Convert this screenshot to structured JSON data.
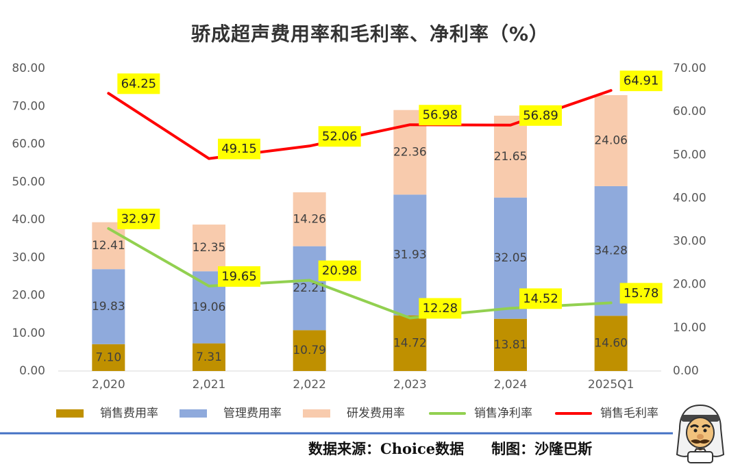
{
  "chart_data": {
    "type": "bar",
    "title": "骄成超声费用率和毛利率、净利率（%）",
    "categories": [
      "2,020",
      "2,021",
      "2,022",
      "2,023",
      "2,024",
      "2025Q1"
    ],
    "left_axis": {
      "ylim": [
        0,
        80
      ],
      "ticks": [
        "0.00",
        "10.00",
        "20.00",
        "30.00",
        "40.00",
        "50.00",
        "60.00",
        "70.00",
        "80.00"
      ]
    },
    "right_axis": {
      "ylim": [
        0,
        70
      ],
      "ticks": [
        "0.00",
        "10.00",
        "20.00",
        "30.00",
        "40.00",
        "50.00",
        "60.00",
        "70.00"
      ]
    },
    "stacked_bars": [
      {
        "name": "销售费用率",
        "color": "#bf9000",
        "values": [
          7.1,
          7.31,
          10.79,
          14.72,
          13.81,
          14.6
        ],
        "labels": [
          "7.10",
          "7.31",
          "10.79",
          "14.72",
          "13.81",
          "14.60"
        ]
      },
      {
        "name": "管理费用率",
        "color": "#8faadc",
        "values": [
          19.83,
          19.06,
          22.21,
          31.93,
          32.05,
          34.28
        ],
        "labels": [
          "19.83",
          "19.06",
          "22.21",
          "31.93",
          "32.05",
          "34.28"
        ]
      },
      {
        "name": "研发费用率",
        "color": "#f8cbad",
        "values": [
          12.41,
          12.35,
          14.26,
          22.36,
          21.65,
          24.06
        ],
        "labels": [
          "12.41",
          "12.35",
          "14.26",
          "22.36",
          "21.65",
          "24.06"
        ]
      }
    ],
    "lines": [
      {
        "name": "销售净利率",
        "color": "#92d050",
        "axis": "right",
        "values": [
          32.97,
          19.65,
          20.98,
          12.28,
          14.52,
          15.78
        ],
        "labels": [
          "32.97",
          "19.65",
          "20.98",
          "12.28",
          "14.52",
          "15.78"
        ]
      },
      {
        "name": "销售毛利率",
        "color": "#ff0000",
        "axis": "right",
        "values": [
          64.25,
          49.15,
          52.06,
          56.98,
          56.89,
          64.91
        ],
        "labels": [
          "64.25",
          "49.15",
          "52.06",
          "56.98",
          "56.89",
          "64.91"
        ]
      }
    ],
    "legend_position": "bottom",
    "grid": false
  },
  "footer": {
    "source": "数据来源：Choice数据",
    "credit": "制图：沙隆巴斯"
  },
  "colors": {
    "divider": "#4472c4",
    "label_bg": "#ffff00"
  }
}
